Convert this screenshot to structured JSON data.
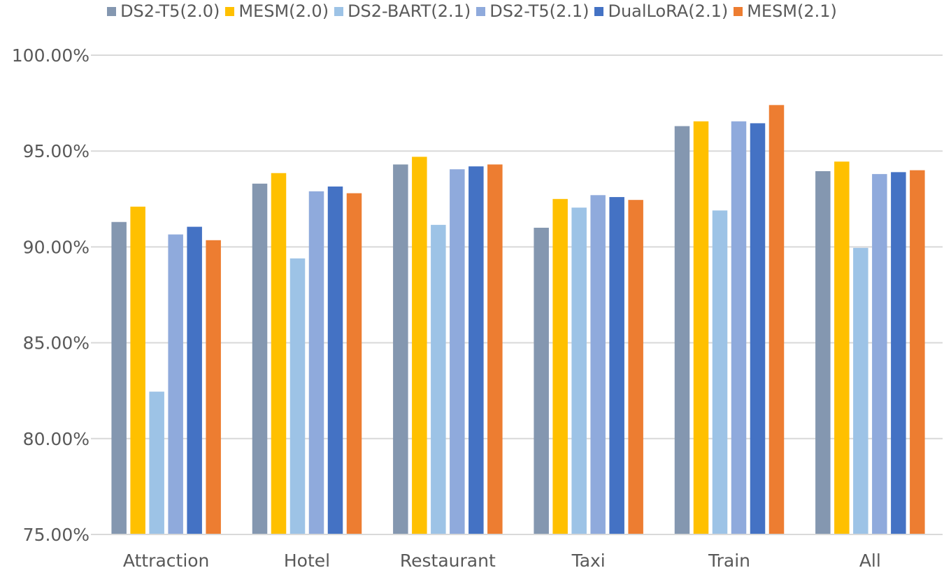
{
  "chart_data": {
    "type": "bar",
    "categories": [
      "Attraction",
      "Hotel",
      "Restaurant",
      "Taxi",
      "Train",
      "All"
    ],
    "series": [
      {
        "name": "DS2-T5(2.0)",
        "color": "#8497b0",
        "values": [
          91.3,
          93.3,
          94.3,
          91.0,
          96.3,
          93.95
        ]
      },
      {
        "name": "MESM(2.0)",
        "color": "#ffc000",
        "values": [
          92.1,
          93.85,
          94.7,
          92.5,
          96.55,
          94.45
        ]
      },
      {
        "name": "DS2-BART(2.1)",
        "color": "#9dc3e6",
        "values": [
          82.45,
          89.4,
          91.15,
          92.05,
          91.9,
          89.95
        ]
      },
      {
        "name": "DS2-T5(2.1)",
        "color": "#8faadc",
        "values": [
          90.65,
          92.9,
          94.05,
          92.7,
          96.55,
          93.8
        ]
      },
      {
        "name": "DualLoRA(2.1)",
        "color": "#4472c4",
        "values": [
          91.05,
          93.15,
          94.2,
          92.6,
          96.45,
          93.9
        ]
      },
      {
        "name": "MESM(2.1)",
        "color": "#ed7d31",
        "values": [
          90.35,
          92.8,
          94.3,
          92.45,
          97.4,
          94.0
        ]
      }
    ],
    "yticks": [
      "75.00%",
      "80.00%",
      "85.00%",
      "90.00%",
      "95.00%",
      "100.00%"
    ],
    "ytick_values": [
      75,
      80,
      85,
      90,
      95,
      100
    ],
    "ylim": [
      75,
      100
    ],
    "title": "",
    "xlabel": "",
    "ylabel": "",
    "grid": true,
    "legend_position": "top"
  }
}
